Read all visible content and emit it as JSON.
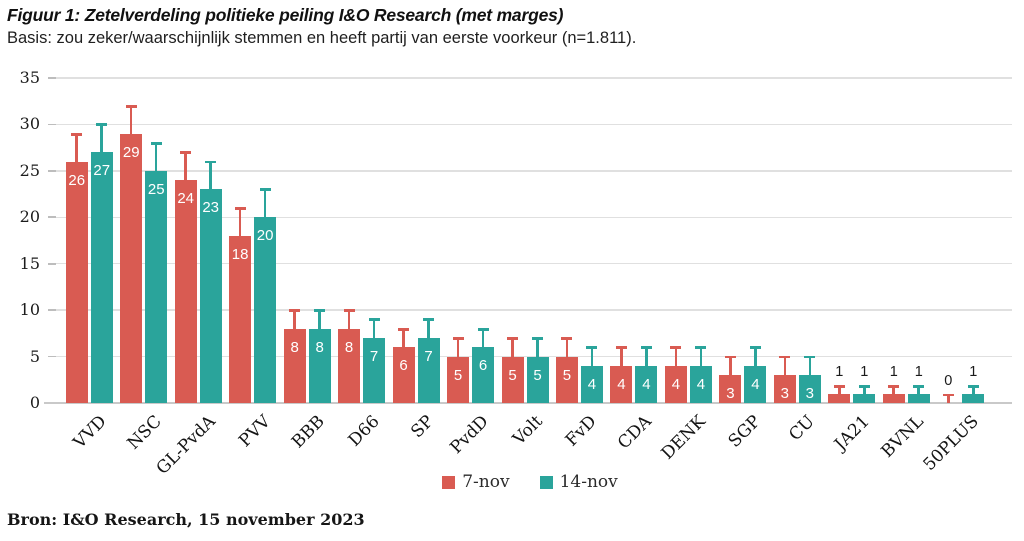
{
  "title": "Figuur 1: Zetelverdeling politieke peiling I&O Research (met marges)",
  "subtitle": "Basis: zou zeker/waarschijnlijk stemmen en heeft partij van eerste voorkeur (n=1.811).",
  "source": "Bron: I&O Research, 15 november 2023",
  "legend": {
    "items": [
      {
        "label": "7-nov",
        "color": "#d95b52"
      },
      {
        "label": "14-nov",
        "color": "#2aa49b"
      }
    ]
  },
  "chart_data": {
    "type": "bar",
    "title": "Figuur 1: Zetelverdeling politieke peiling I&O Research (met marges)",
    "subtitle": "Basis: zou zeker/waarschijnlijk stemmen en heeft partij van eerste voorkeur (n=1.811).",
    "categories": [
      "VVD",
      "NSC",
      "GL-PvdA",
      "PVV",
      "BBB",
      "D66",
      "SP",
      "PvdD",
      "Volt",
      "FvD",
      "CDA",
      "DENK",
      "SGP",
      "CU",
      "JA21",
      "BVNL",
      "50PLUS"
    ],
    "series": [
      {
        "name": "7-nov",
        "color": "#d95b52",
        "values": [
          26,
          29,
          24,
          18,
          8,
          8,
          6,
          5,
          5,
          5,
          4,
          4,
          3,
          3,
          1,
          1,
          0
        ],
        "error_top": [
          29,
          32,
          27,
          21,
          10,
          10,
          8,
          7,
          7,
          7,
          6,
          6,
          5,
          5,
          1.8,
          1.8,
          0.9
        ]
      },
      {
        "name": "14-nov",
        "color": "#2aa49b",
        "values": [
          27,
          25,
          23,
          20,
          8,
          7,
          7,
          6,
          5,
          4,
          4,
          4,
          4,
          3,
          1,
          1,
          1
        ],
        "error_top": [
          30,
          28,
          26,
          23,
          10,
          9,
          9,
          8,
          7,
          6,
          6,
          6,
          6,
          5,
          1.8,
          1.8,
          1.8
        ]
      }
    ],
    "xlabel": "",
    "ylabel": "",
    "ylim": [
      0,
      35
    ],
    "yticks": [
      0,
      5,
      10,
      15,
      20,
      25,
      30,
      35
    ],
    "grid": true,
    "error_bars": "upper whiskers only, same color as bar",
    "value_labels": "white inside bar top for values >= 3, black above whisker for values < 3",
    "legend_position": "bottom-center",
    "colors": {
      "grid": "#e0e0e0",
      "baseline": "#c9c9c9",
      "tick": "#bdbdbd",
      "text": "#1a1a1a"
    }
  }
}
